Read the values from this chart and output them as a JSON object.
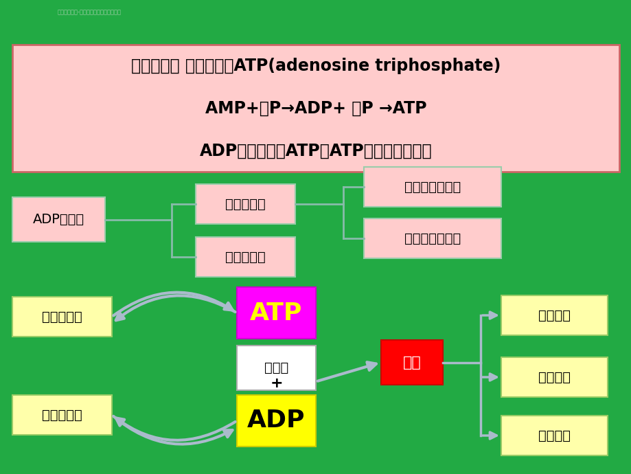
{
  "bg_color": "#22aa44",
  "title_box_color": "#ffcccc",
  "title_border_color": "#cc6666",
  "title_lines": [
    "能量循环： 三磷酸腺苷ATP(adenosine triphosphate)",
    "AMP+～P→ADP+ ～P →ATP",
    "ADP磷酸化生成ATP；ATP水解产生能量。"
  ],
  "flow_labels": {
    "adp": "ADP磷酸化",
    "oxidative": "氧化磷酸化",
    "photo": "光合磷酸化",
    "substrate": "底物水平磷酸堖",
    "electron": "电子传递磷酸化"
  },
  "bottom_labels": {
    "low": "低能化合物",
    "high": "高能化合物",
    "atp": "ATP",
    "phosphate": "磷酸根",
    "plus": "+",
    "adp": "ADP",
    "energy": "能量",
    "cell": "细胞合成",
    "physio": "生理需要",
    "heat": "热能释放"
  },
  "arrow_color": "#aabbcc"
}
